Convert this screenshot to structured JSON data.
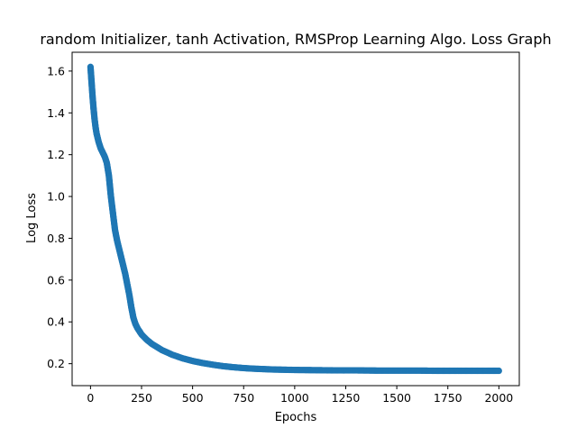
{
  "chart_data": {
    "type": "scatter",
    "title": "random Initializer, tanh Activation, RMSProp Learning Algo. Loss Graph",
    "xlabel": "Epochs",
    "ylabel": "Log Loss",
    "xlim": [
      -90,
      2100
    ],
    "ylim": [
      0.095,
      1.69
    ],
    "xticks": [
      0,
      250,
      500,
      750,
      1000,
      1250,
      1500,
      1750,
      2000
    ],
    "yticks": [
      0.2,
      0.4,
      0.6,
      0.8,
      1.0,
      1.2,
      1.4,
      1.6
    ],
    "xtick_labels": [
      "0",
      "250",
      "500",
      "750",
      "1000",
      "1250",
      "1500",
      "1750",
      "2000"
    ],
    "ytick_labels": [
      "0.2",
      "0.4",
      "0.6",
      "0.8",
      "1.0",
      "1.2",
      "1.4",
      "1.6"
    ],
    "grid": false,
    "marker_color": "#1f77b4",
    "series": [
      {
        "x": [
          0,
          5,
          10,
          15,
          20,
          25,
          30,
          40,
          50,
          60,
          70,
          80,
          90,
          100,
          110,
          120,
          130,
          140,
          150,
          160,
          170,
          180,
          190,
          200,
          210,
          220,
          230,
          240,
          250,
          275,
          300,
          350,
          400,
          450,
          500,
          550,
          600,
          650,
          700,
          750,
          800,
          900,
          1000,
          1100,
          1200,
          1300,
          1400,
          1500,
          1600,
          1700,
          1800,
          1900,
          2000
        ],
        "y": [
          1.62,
          1.55,
          1.48,
          1.42,
          1.37,
          1.33,
          1.3,
          1.26,
          1.23,
          1.21,
          1.19,
          1.16,
          1.1,
          1.0,
          0.92,
          0.84,
          0.79,
          0.75,
          0.71,
          0.67,
          0.63,
          0.58,
          0.53,
          0.47,
          0.42,
          0.39,
          0.37,
          0.355,
          0.34,
          0.315,
          0.295,
          0.265,
          0.243,
          0.226,
          0.213,
          0.203,
          0.195,
          0.188,
          0.183,
          0.179,
          0.176,
          0.172,
          0.17,
          0.169,
          0.168,
          0.168,
          0.167,
          0.167,
          0.167,
          0.166,
          0.166,
          0.166,
          0.166
        ]
      }
    ]
  }
}
